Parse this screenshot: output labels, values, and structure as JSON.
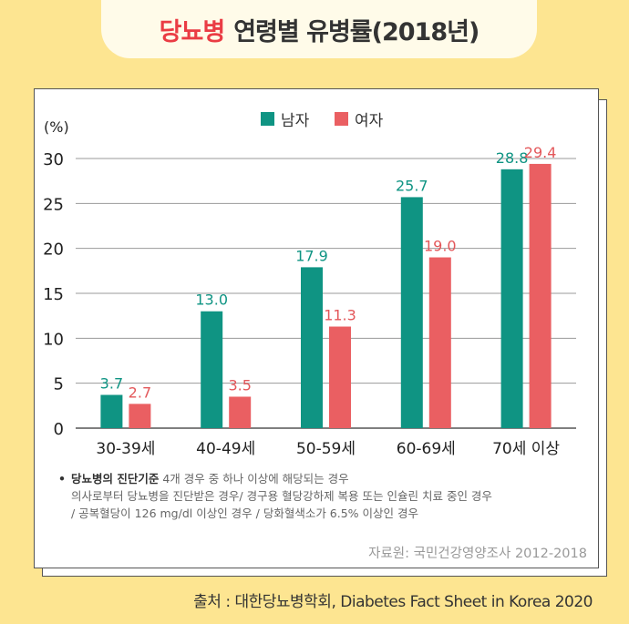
{
  "header": {
    "title_accent": "당뇨병",
    "title_rest": "연령별 유병률(2018년)"
  },
  "chart_data": {
    "type": "bar",
    "ylabel": "(%)",
    "ylim": [
      0,
      30
    ],
    "yticks": [
      0,
      5,
      10,
      15,
      20,
      25,
      30
    ],
    "grid": true,
    "legend_position": "top-center",
    "categories": [
      "30-39세",
      "40-49세",
      "50-59세",
      "60-69세",
      "70세 이상"
    ],
    "series": [
      {
        "name": "남자",
        "color": "#0f9483",
        "label_color": "#0f9483",
        "values": [
          3.7,
          13.0,
          17.9,
          25.7,
          28.8
        ],
        "labels": [
          "3.7",
          "13.0",
          "17.9",
          "25.7",
          "28.8"
        ]
      },
      {
        "name": "여자",
        "color": "#ea5f62",
        "label_color": "#e3575a",
        "values": [
          2.7,
          3.5,
          11.3,
          19.0,
          29.4
        ],
        "labels": [
          "2.7",
          "3.5",
          "11.3",
          "19.0",
          "29.4"
        ]
      }
    ]
  },
  "notes": {
    "bullet": "•",
    "heading": "당뇨병의 진단기준",
    "line1": "4개 경우 중 하나 이상에 해당되는 경우",
    "line2": "의사로부터 당뇨병을 진단받은 경우/ 경구용 혈당강하제 복용 또는 인슐린 치료 중인 경우",
    "line3": "/ 공복혈당이 126 mg/dl 이상인 경우 / 당화혈색소가 6.5% 이상인 경우"
  },
  "source": "자료원: 국민건강영양조사 2012-2018",
  "footer": "출처 : 대한당뇨병학회, Diabetes Fact Sheet in Korea 2020"
}
